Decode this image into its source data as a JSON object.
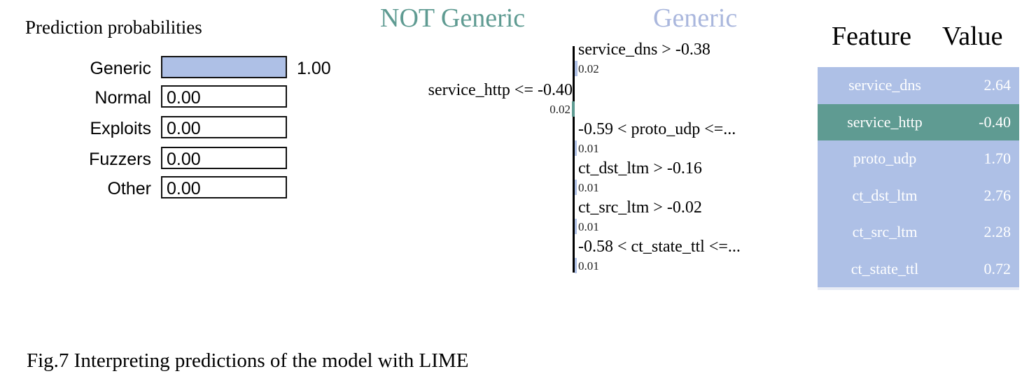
{
  "colors": {
    "positive": "#aec0e6",
    "negative": "#5f9b92",
    "pos_title": "#aab7dd",
    "neg_title": "#5f9b92"
  },
  "prediction": {
    "title": "Prediction probabilities",
    "classes": [
      {
        "label": "Generic",
        "value": 1.0,
        "display": "1.00"
      },
      {
        "label": "Normal",
        "value": 0.0,
        "display": "0.00"
      },
      {
        "label": "Exploits",
        "value": 0.0,
        "display": "0.00"
      },
      {
        "label": "Fuzzers",
        "value": 0.0,
        "display": "0.00"
      },
      {
        "label": "Other",
        "value": 0.0,
        "display": "0.00"
      }
    ]
  },
  "explanation": {
    "neg_title": "NOT Generic",
    "pos_title": "Generic",
    "features": [
      {
        "label": "service_dns > -0.38",
        "weight": 0.02,
        "display": "0.02",
        "side": "positive"
      },
      {
        "label": "service_http <= -0.40",
        "weight": 0.02,
        "display": "0.02",
        "side": "negative"
      },
      {
        "label": "-0.59 < proto_udp <=...",
        "weight": 0.01,
        "display": "0.01",
        "side": "positive"
      },
      {
        "label": "ct_dst_ltm > -0.16",
        "weight": 0.01,
        "display": "0.01",
        "side": "positive"
      },
      {
        "label": "ct_src_ltm > -0.02",
        "weight": 0.01,
        "display": "0.01",
        "side": "positive"
      },
      {
        "label": "-0.58 < ct_state_ttl <=...",
        "weight": 0.01,
        "display": "0.01",
        "side": "positive"
      }
    ]
  },
  "table": {
    "header_feature": "Feature",
    "header_value": "Value",
    "rows": [
      {
        "feature": "service_dns",
        "value": "2.64",
        "side": "positive"
      },
      {
        "feature": "service_http",
        "value": "-0.40",
        "side": "negative"
      },
      {
        "feature": "proto_udp",
        "value": "1.70",
        "side": "positive"
      },
      {
        "feature": "ct_dst_ltm",
        "value": "2.76",
        "side": "positive"
      },
      {
        "feature": "ct_src_ltm",
        "value": "2.28",
        "side": "positive"
      },
      {
        "feature": "ct_state_ttl",
        "value": "0.72",
        "side": "positive"
      }
    ]
  },
  "caption": "Fig.7 Interpreting predictions of the model with LIME",
  "chart_data": [
    {
      "type": "bar",
      "title": "Prediction probabilities",
      "categories": [
        "Generic",
        "Normal",
        "Exploits",
        "Fuzzers",
        "Other"
      ],
      "values": [
        1.0,
        0.0,
        0.0,
        0.0,
        0.0
      ],
      "ylim": [
        0,
        1
      ]
    },
    {
      "type": "bar",
      "categories": [
        "service_dns > -0.38",
        "service_http <= -0.40",
        "-0.59 < proto_udp <=...",
        "ct_dst_ltm > -0.16",
        "ct_src_ltm > -0.02",
        "-0.58 < ct_state_ttl <=..."
      ],
      "series": [
        {
          "name": "Generic",
          "values": [
            0.02,
            0,
            0.01,
            0.01,
            0.01,
            0.01
          ]
        },
        {
          "name": "NOT Generic",
          "values": [
            0,
            0.02,
            0,
            0,
            0,
            0
          ]
        }
      ]
    }
  ]
}
